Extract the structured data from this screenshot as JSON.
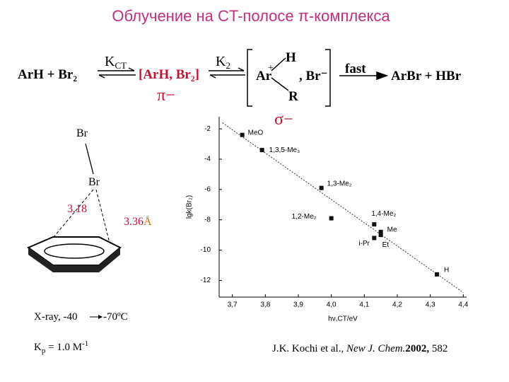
{
  "title": "Облучение на CT-полосе π-комплекса",
  "scheme": {
    "reactants": "ArH  +  Br₂",
    "k_ct": "K",
    "k_ct_sub": "CT",
    "pi_complex": "[ArH, Br₂]",
    "pi_label": "π−",
    "k2": "K",
    "k2_sub": "2",
    "ar": "Ar",
    "plus": "+",
    "h": "H",
    "r": "R",
    "br": ", Br⁻",
    "fast": "fast",
    "products": "ArBr +  HBr",
    "sigma_label": "σ−"
  },
  "structure": {
    "br_top": "Br",
    "br_bottom": "Br",
    "d1": "3.18",
    "d2": "3.36",
    "angstrom": "Å",
    "xray": "X-ray, -40",
    "xray_end": "-70ºC",
    "kp": "K",
    "kp_sub": "p",
    "kp_rest": " = 1.0 M",
    "kp_sup": "-1"
  },
  "citation": {
    "authors": "J.K. Kochi et al., ",
    "journal": "New J. Chem.",
    "year": "2002,",
    "page": " 582"
  },
  "chart_data": {
    "type": "scatter",
    "x_label": "hν,CT/eV",
    "y_label": "lgk(Br₂)",
    "x": [
      3.73,
      3.79,
      3.97,
      4.0,
      4.13,
      4.15,
      4.13,
      4.15,
      4.32
    ],
    "values": [
      -2.4,
      -3.4,
      -5.9,
      -7.9,
      -8.3,
      -8.8,
      -9.2,
      -9.0,
      -11.6
    ],
    "point_labels": [
      "MeO",
      "1,3,5-Me₃",
      "1,3-Me₂",
      "1,2-Me₂",
      "1,4-Me₂",
      "Me",
      "i-Pr",
      "Et",
      "H"
    ],
    "color": "#111111",
    "fit_line": {
      "x": [
        3.67,
        4.4
      ],
      "y": [
        -1.6,
        -12.8
      ]
    },
    "xlim": [
      3.66,
      4.41
    ],
    "ylim": [
      -13.1,
      -1.2
    ],
    "xticks": [
      {
        "value": 3.7,
        "label": "3,7"
      },
      {
        "value": 3.8,
        "label": "3,8"
      },
      {
        "value": 3.9,
        "label": "3,9"
      },
      {
        "value": 4.0,
        "label": "4,0"
      },
      {
        "value": 4.1,
        "label": "4,1"
      },
      {
        "value": 4.2,
        "label": "4,2"
      },
      {
        "value": 4.3,
        "label": "4,3"
      },
      {
        "value": 4.4,
        "label": "4,4"
      }
    ],
    "yticks": [
      -2,
      -4,
      -6,
      -8,
      -10,
      -12
    ]
  }
}
